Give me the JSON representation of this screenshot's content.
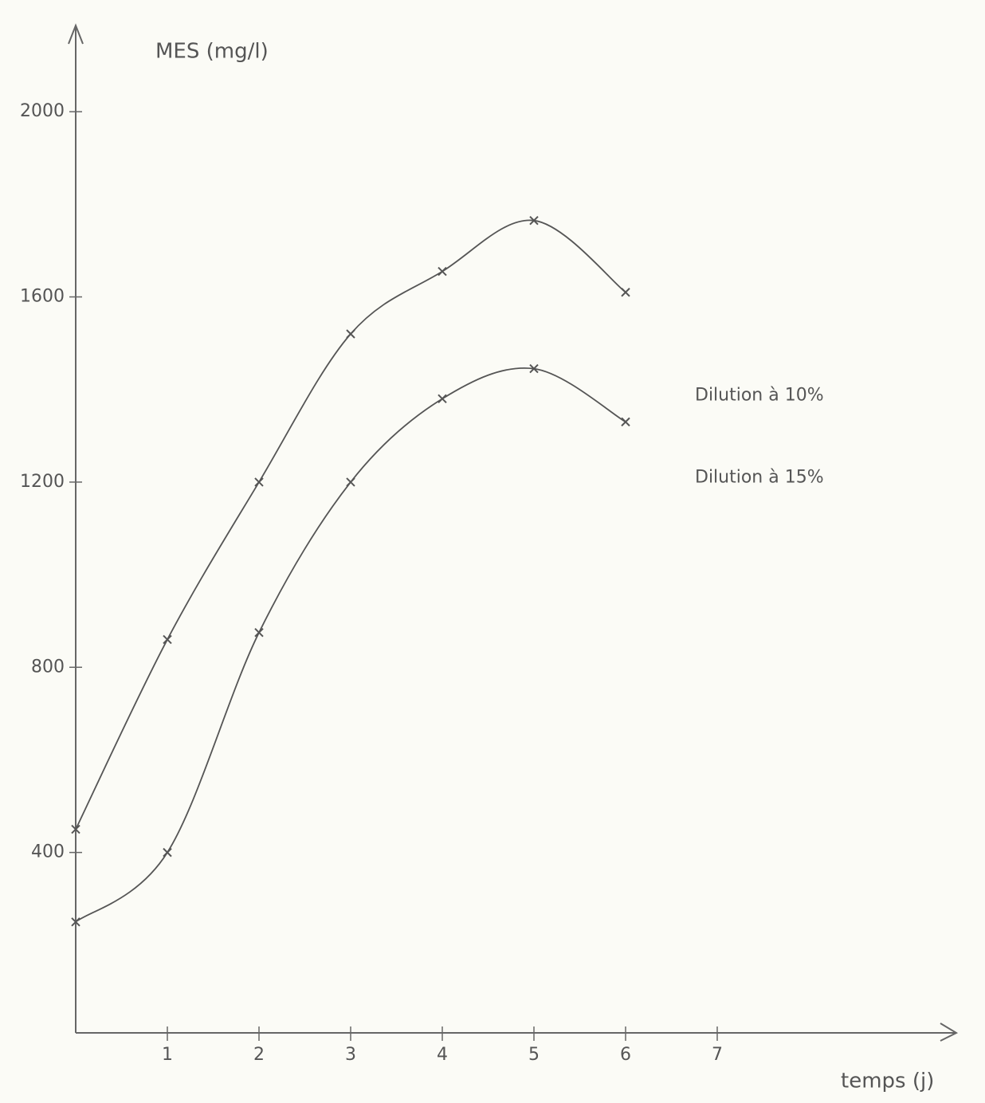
{
  "chart_data": {
    "type": "line",
    "ylabel": "MES (mg/l)",
    "xlabel": "temps (j)",
    "x": [
      0,
      1,
      2,
      3,
      4,
      5,
      6
    ],
    "series": [
      {
        "name": "Dilution à 10%",
        "color": "#555555",
        "values": [
          450,
          860,
          1200,
          1520,
          1655,
          1765,
          1610
        ]
      },
      {
        "name": "Dilution à 15%",
        "color": "#555555",
        "values": [
          250,
          400,
          875,
          1200,
          1380,
          1445,
          1330
        ]
      }
    ],
    "xlim": [
      0,
      9.6
    ],
    "xticks": [
      1,
      2,
      3,
      4,
      5,
      6,
      7
    ],
    "ylim": [
      0,
      2200
    ],
    "yticks": [
      400,
      800,
      1200,
      1600,
      2000
    ],
    "grid": false
  }
}
